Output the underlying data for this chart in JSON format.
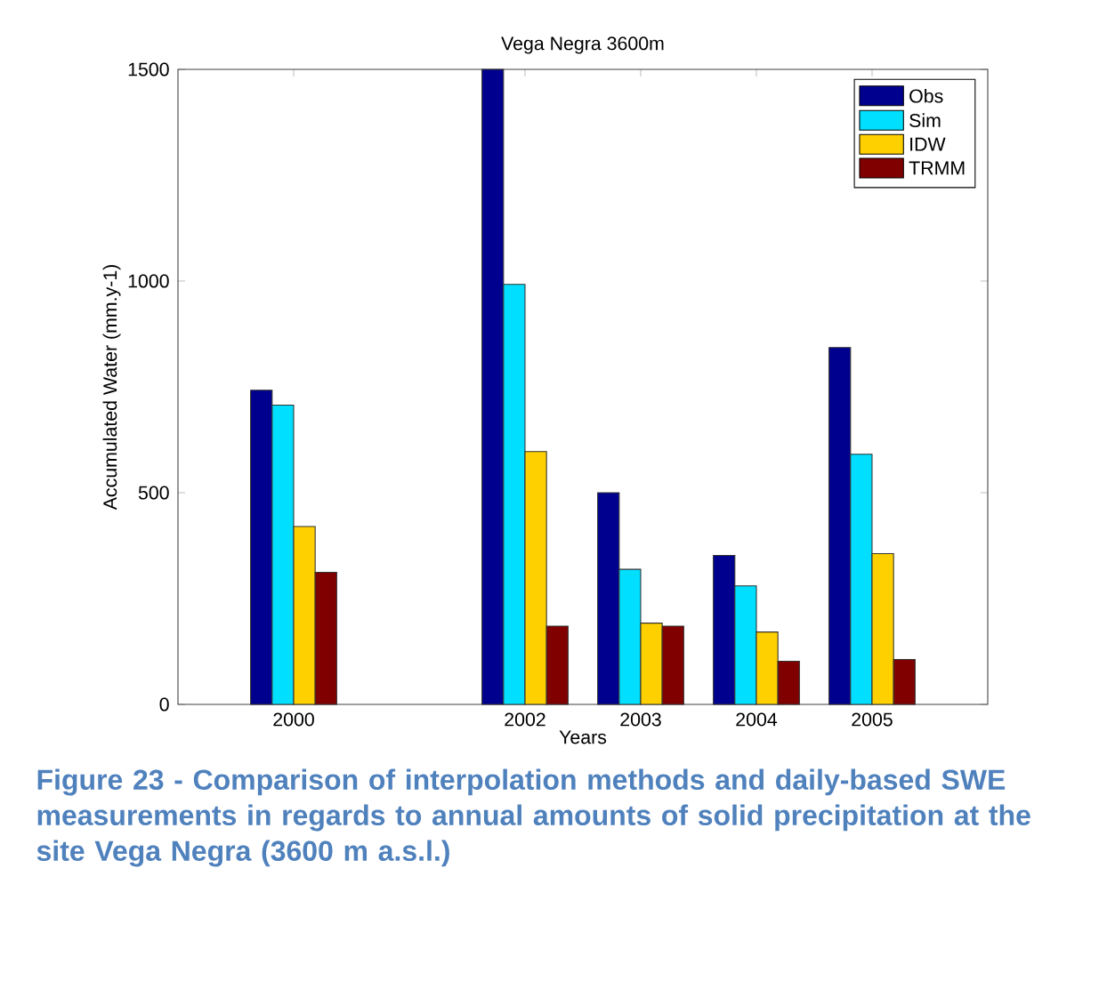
{
  "chart_data": {
    "type": "bar",
    "title": "Vega Negra 3600m",
    "xlabel": "Years",
    "ylabel": "Accumulated Water (mm.y-1)",
    "x": [
      2000,
      2002,
      2003,
      2004,
      2005
    ],
    "series": [
      {
        "name": "Obs",
        "color": "#00008f",
        "values": [
          742,
          1500,
          500,
          352,
          843
        ]
      },
      {
        "name": "Sim",
        "color": "#00dfff",
        "values": [
          707,
          992,
          319,
          280,
          591
        ]
      },
      {
        "name": "IDW",
        "color": "#ffd000",
        "values": [
          420,
          597,
          192,
          171,
          356
        ]
      },
      {
        "name": "TRMM",
        "color": "#800000",
        "values": [
          312,
          185,
          185,
          102,
          106
        ]
      }
    ],
    "xlim": [
      1999,
      2006
    ],
    "xticks": [
      2000,
      2002,
      2003,
      2004,
      2005
    ],
    "ylim": [
      0,
      1500
    ],
    "yticks": [
      0,
      500,
      1000,
      1500
    ],
    "grid": false,
    "legend": "top right",
    "annotations": [
      "Figure 23 - Comparison of interpolation methods and daily-based SWE measurements in regards to annual amounts of solid precipitation at the site Vega Negra (3600 m a.s.l.)"
    ]
  }
}
